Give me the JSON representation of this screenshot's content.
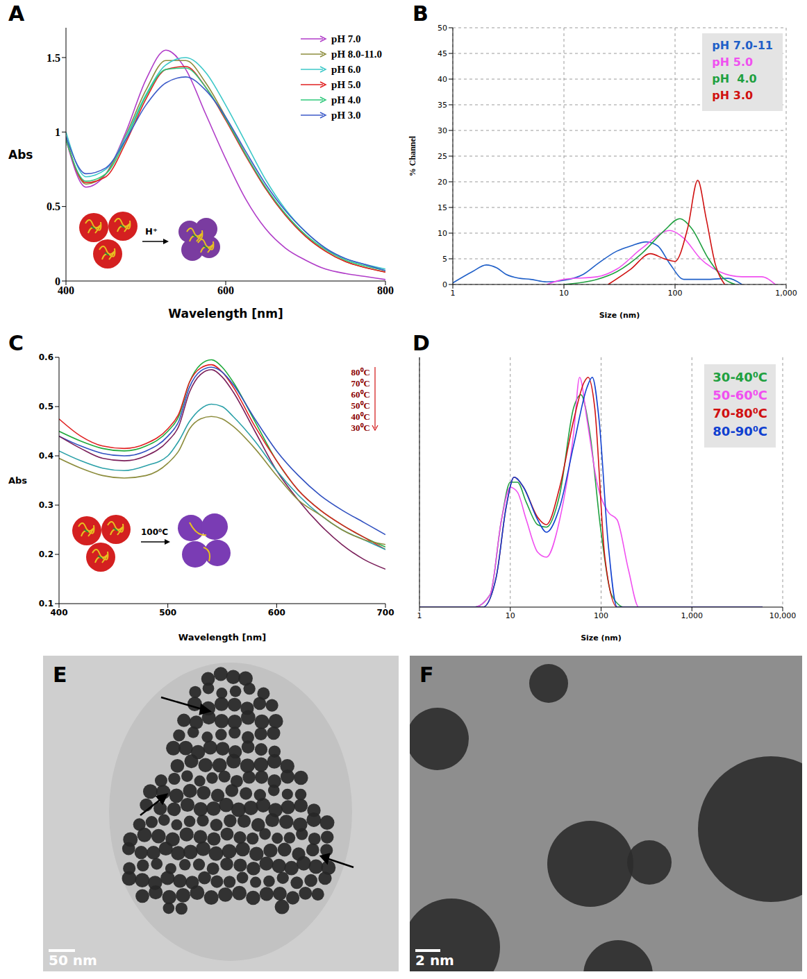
{
  "chart_data": [
    {
      "title": "A",
      "type": "line",
      "x_label": "Wavelength [nm]",
      "y_label": "Abs",
      "xlim": [
        400,
        800
      ],
      "xticks": [
        400,
        600,
        800
      ],
      "ylim": [
        0,
        1.7
      ],
      "yticks": [
        0,
        0.5,
        1,
        1.5
      ],
      "grid": false,
      "legend": "top-right",
      "annotations": [
        "H⁺"
      ],
      "x": [
        400,
        425,
        450,
        475,
        500,
        525,
        550,
        575,
        600,
        625,
        650,
        675,
        700,
        725,
        750,
        775,
        800
      ],
      "series": [
        {
          "name": "pH 7.0",
          "color": "#b03cc8",
          "values": [
            0.95,
            0.63,
            0.72,
            1.0,
            1.35,
            1.55,
            1.42,
            1.12,
            0.82,
            0.55,
            0.35,
            0.22,
            0.14,
            0.08,
            0.05,
            0.03,
            0.01
          ]
        },
        {
          "name": "pH 8.0-11.0",
          "color": "#8c8c3c",
          "values": [
            0.97,
            0.65,
            0.72,
            0.98,
            1.28,
            1.48,
            1.48,
            1.33,
            1.1,
            0.85,
            0.62,
            0.44,
            0.3,
            0.2,
            0.13,
            0.09,
            0.06
          ]
        },
        {
          "name": "pH 6.0",
          "color": "#3cc8c8",
          "values": [
            1.0,
            0.7,
            0.75,
            0.97,
            1.25,
            1.45,
            1.5,
            1.4,
            1.18,
            0.93,
            0.68,
            0.48,
            0.33,
            0.22,
            0.15,
            0.11,
            0.08
          ]
        },
        {
          "name": "pH 5.0",
          "color": "#e02020",
          "values": [
            0.95,
            0.66,
            0.7,
            0.93,
            1.22,
            1.42,
            1.44,
            1.3,
            1.08,
            0.84,
            0.62,
            0.44,
            0.3,
            0.2,
            0.13,
            0.09,
            0.06
          ]
        },
        {
          "name": "pH 4.0",
          "color": "#2ec87a",
          "values": [
            0.95,
            0.67,
            0.72,
            0.95,
            1.24,
            1.42,
            1.43,
            1.3,
            1.09,
            0.85,
            0.63,
            0.45,
            0.31,
            0.21,
            0.14,
            0.1,
            0.07
          ]
        },
        {
          "name": "pH 3.0",
          "color": "#3c5ac8",
          "values": [
            0.97,
            0.72,
            0.76,
            0.95,
            1.18,
            1.33,
            1.37,
            1.28,
            1.1,
            0.87,
            0.65,
            0.47,
            0.33,
            0.22,
            0.15,
            0.11,
            0.07
          ]
        }
      ]
    },
    {
      "title": "B",
      "type": "line",
      "log": "x",
      "x_label": "Size (nm)",
      "y_label": "% Channel",
      "xlim": [
        1,
        1000
      ],
      "xticks": [
        1,
        10,
        100,
        {
          "value": 1000,
          "label": "1,000"
        }
      ],
      "ylim": [
        0,
        50
      ],
      "yticks": [
        0,
        5,
        10,
        15,
        20,
        25,
        30,
        35,
        40,
        45,
        50
      ],
      "grid": true,
      "legend": "top-right",
      "series": [
        {
          "name": "pH 7.0-11",
          "color": "#1f5fc8",
          "x": [
            1,
            1.5,
            2,
            2.5,
            3,
            4,
            5,
            7,
            10,
            15,
            20,
            30,
            40,
            55,
            70,
            90,
            120,
            200,
            300,
            400
          ],
          "values": [
            0.3,
            2.5,
            3.8,
            3.2,
            2,
            1.2,
            1,
            0.5,
            0.8,
            2,
            4,
            6.5,
            7.5,
            8.3,
            7.5,
            4,
            1,
            1,
            1.2,
            0
          ]
        },
        {
          "name": "pH 5.0",
          "color": "#f050f0",
          "x": [
            7,
            10,
            20,
            30,
            50,
            90,
            120,
            170,
            250,
            400,
            600,
            800
          ],
          "values": [
            0,
            1,
            1.5,
            3,
            7,
            10.5,
            9,
            5,
            2.5,
            1.5,
            1.5,
            0
          ]
        },
        {
          "name": "pH  4.0",
          "color": "#20a040",
          "x": [
            10,
            20,
            30,
            50,
            80,
            110,
            140,
            200,
            280,
            350
          ],
          "values": [
            0,
            1,
            2.5,
            6,
            10.5,
            12.8,
            11,
            5,
            1,
            0
          ]
        },
        {
          "name": "pH 3.0",
          "color": "#d01010",
          "x": [
            25,
            40,
            60,
            80,
            100,
            130,
            160,
            190,
            230,
            280
          ],
          "values": [
            0,
            3,
            6,
            5,
            4.5,
            11,
            20.3,
            13,
            4,
            0
          ]
        }
      ]
    },
    {
      "title": "C",
      "type": "line",
      "x_label": "Wavelength [nm]",
      "y_label": "Abs",
      "xlim": [
        400,
        700
      ],
      "xticks": [
        400,
        500,
        600,
        700
      ],
      "ylim": [
        0.1,
        0.6
      ],
      "yticks": [
        0.1,
        0.2,
        0.3,
        0.4,
        0.5,
        0.6
      ],
      "grid": false,
      "legend": "top-right",
      "annotations": [
        "100⁰C"
      ],
      "x": [
        400,
        420,
        440,
        460,
        480,
        500,
        510,
        520,
        530,
        540,
        550,
        560,
        580,
        600,
        620,
        640,
        660,
        680,
        700
      ],
      "series": [
        {
          "name": "80⁰C",
          "color": "#1faa3c",
          "values": [
            0.45,
            0.43,
            0.415,
            0.41,
            0.42,
            0.45,
            0.48,
            0.55,
            0.585,
            0.595,
            0.58,
            0.55,
            0.47,
            0.39,
            0.33,
            0.29,
            0.26,
            0.235,
            0.215
          ]
        },
        {
          "name": "70⁰C",
          "color": "#e02020",
          "values": [
            0.475,
            0.44,
            0.42,
            0.415,
            0.425,
            0.455,
            0.485,
            0.55,
            0.578,
            0.585,
            0.57,
            0.54,
            0.46,
            0.39,
            0.33,
            0.29,
            0.26,
            0.235,
            0.21
          ]
        },
        {
          "name": "60⁰C",
          "color": "#3050c0",
          "values": [
            0.44,
            0.42,
            0.405,
            0.4,
            0.41,
            0.44,
            0.47,
            0.54,
            0.572,
            0.58,
            0.57,
            0.545,
            0.475,
            0.41,
            0.36,
            0.32,
            0.29,
            0.265,
            0.24
          ]
        },
        {
          "name": "50⁰C",
          "color": "#7a1f5a",
          "values": [
            0.44,
            0.415,
            0.395,
            0.39,
            0.4,
            0.43,
            0.46,
            0.53,
            0.565,
            0.575,
            0.56,
            0.53,
            0.45,
            0.37,
            0.31,
            0.26,
            0.22,
            0.19,
            0.17
          ]
        },
        {
          "name": "40⁰C",
          "color": "#2aa0a8",
          "values": [
            0.41,
            0.39,
            0.375,
            0.37,
            0.38,
            0.4,
            0.43,
            0.47,
            0.495,
            0.505,
            0.5,
            0.48,
            0.43,
            0.37,
            0.32,
            0.28,
            0.25,
            0.23,
            0.21
          ]
        },
        {
          "name": "30⁰C",
          "color": "#8c8c3c",
          "values": [
            0.395,
            0.375,
            0.36,
            0.355,
            0.36,
            0.385,
            0.41,
            0.455,
            0.475,
            0.48,
            0.475,
            0.46,
            0.415,
            0.36,
            0.31,
            0.28,
            0.25,
            0.23,
            0.22
          ]
        }
      ]
    },
    {
      "title": "D",
      "type": "line",
      "log": "x",
      "x_label": "Size (nm)",
      "xlim": [
        1,
        10000
      ],
      "xticks": [
        1,
        10,
        100,
        {
          "value": 1000,
          "label": "1,000"
        },
        {
          "value": 10000,
          "label": "10,000"
        }
      ],
      "ylim": [
        0,
        100
      ],
      "tick_labels": "x",
      "grid": true,
      "legend": "top-right",
      "series": [
        {
          "name": "30-40⁰C",
          "color": "#20a040",
          "x": [
            1,
            4,
            6,
            8,
            10,
            12,
            15,
            20,
            25,
            35,
            50,
            60,
            75,
            100,
            130,
            180,
            6000
          ],
          "values": [
            0,
            0,
            5,
            35,
            50,
            50,
            42,
            33,
            32,
            45,
            80,
            85,
            70,
            30,
            5,
            0,
            0
          ]
        },
        {
          "name": "50-60⁰C",
          "color": "#f050f0",
          "x": [
            1,
            4,
            6,
            8,
            10,
            12,
            15,
            20,
            25,
            35,
            50,
            58,
            70,
            90,
            120,
            150,
            200,
            260,
            6000
          ],
          "values": [
            0,
            0,
            5,
            35,
            48,
            46,
            35,
            22,
            20,
            35,
            70,
            92,
            75,
            50,
            38,
            35,
            15,
            0,
            0
          ]
        },
        {
          "name": "70-80⁰C",
          "color": "#d01010",
          "x": [
            1,
            5,
            7,
            9,
            11,
            14,
            20,
            25,
            35,
            50,
            65,
            72,
            85,
            110,
            150,
            6000
          ],
          "values": [
            0,
            0,
            12,
            40,
            52,
            48,
            36,
            33,
            48,
            75,
            90,
            92,
            80,
            20,
            0,
            0
          ]
        },
        {
          "name": "80-90⁰C",
          "color": "#1040d0",
          "x": [
            1,
            5,
            7,
            9,
            11,
            14,
            20,
            25,
            35,
            50,
            70,
            80,
            95,
            120,
            150,
            6000
          ],
          "values": [
            0,
            0,
            12,
            40,
            52,
            48,
            35,
            30,
            40,
            65,
            88,
            92,
            75,
            25,
            0,
            0
          ]
        }
      ]
    }
  ],
  "images": [
    {
      "title": "E",
      "scale_bar": "50 nm"
    },
    {
      "title": "F",
      "scale_bar": "2 nm"
    }
  ]
}
